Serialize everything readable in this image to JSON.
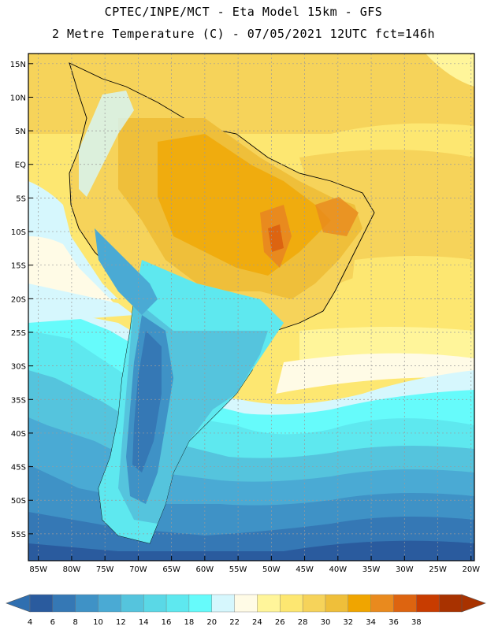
{
  "header": {
    "line1": "CPTEC/INPE/MCT -  Eta Model 15km - GFS",
    "line2": "2 Metre Temperature (C) - 07/05/2021 12UTC fct=146h"
  },
  "map": {
    "lat_labels": [
      "15N",
      "10N",
      "5N",
      "EQ",
      "5S",
      "10S",
      "15S",
      "20S",
      "25S",
      "30S",
      "35S",
      "40S",
      "45S",
      "50S",
      "55S"
    ],
    "lat_values": [
      15,
      10,
      5,
      0,
      -5,
      -10,
      -15,
      -20,
      -25,
      -30,
      -35,
      -40,
      -45,
      -50,
      -55
    ],
    "lon_labels": [
      "85W",
      "80W",
      "75W",
      "70W",
      "65W",
      "60W",
      "55W",
      "50W",
      "45W",
      "40W",
      "35W",
      "30W",
      "25W",
      "20W"
    ],
    "lon_values": [
      -85,
      -80,
      -75,
      -70,
      -65,
      -60,
      -55,
      -50,
      -45,
      -40,
      -35,
      -30,
      -25,
      -20
    ]
  },
  "colorbar": {
    "labels": [
      "4",
      "6",
      "8",
      "10",
      "12",
      "14",
      "16",
      "18",
      "20",
      "22",
      "24",
      "26",
      "28",
      "30",
      "32",
      "34",
      "36",
      "38"
    ],
    "colors": [
      "#2a5b9e",
      "#3578b5",
      "#3f92c6",
      "#4aaad4",
      "#55c4dd",
      "#5ad8e6",
      "#5ee8ef",
      "#66fbfb",
      "#d6f7fd",
      "#fffbe6",
      "#fff59a",
      "#fde771",
      "#f6d35a",
      "#efbf3a",
      "#f0a500",
      "#e98a1e",
      "#dd6410",
      "#c83c00",
      "#a83200"
    ],
    "low_color": "#2f6fb0",
    "high_color": "#a83200"
  }
}
